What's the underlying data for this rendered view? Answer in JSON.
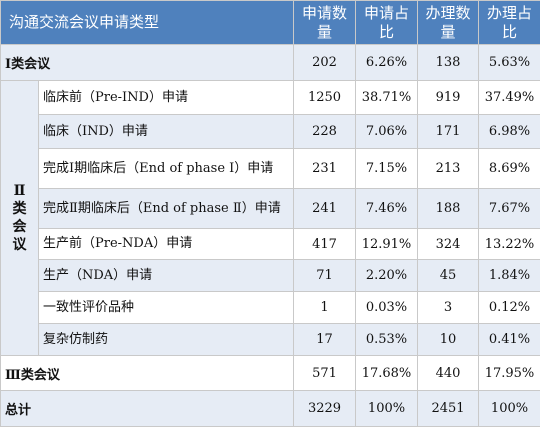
{
  "table": {
    "headers": [
      "沟通交流会议申请类型",
      "申请数量",
      "申请占比",
      "办理数量",
      "办理占比"
    ],
    "group_label": "Ⅱ类会议",
    "rows": [
      {
        "label": "Ⅰ类会议",
        "apply": "202",
        "apply_pct": "6.26%",
        "handle": "138",
        "handle_pct": "5.63%"
      },
      {
        "label": "临床前（Pre-IND）申请",
        "apply": "1250",
        "apply_pct": "38.71%",
        "handle": "919",
        "handle_pct": "37.49%"
      },
      {
        "label": "临床（IND）申请",
        "apply": "228",
        "apply_pct": "7.06%",
        "handle": "171",
        "handle_pct": "6.98%"
      },
      {
        "label": "完成Ⅰ期临床后（End of phase Ⅰ）申请",
        "apply": "231",
        "apply_pct": "7.15%",
        "handle": "213",
        "handle_pct": "8.69%"
      },
      {
        "label": "完成Ⅱ期临床后（End of phase Ⅱ）申请",
        "apply": "241",
        "apply_pct": "7.46%",
        "handle": "188",
        "handle_pct": "7.67%"
      },
      {
        "label": "生产前（Pre-NDA）申请",
        "apply": "417",
        "apply_pct": "12.91%",
        "handle": "324",
        "handle_pct": "13.22%"
      },
      {
        "label": "生产（NDA）申请",
        "apply": "71",
        "apply_pct": "2.20%",
        "handle": "45",
        "handle_pct": "1.84%"
      },
      {
        "label": "一致性评价品种",
        "apply": "1",
        "apply_pct": "0.03%",
        "handle": "3",
        "handle_pct": "0.12%"
      },
      {
        "label": "复杂仿制药",
        "apply": "17",
        "apply_pct": "0.53%",
        "handle": "10",
        "handle_pct": "0.41%"
      },
      {
        "label": "Ⅲ类会议",
        "apply": "571",
        "apply_pct": "17.68%",
        "handle": "440",
        "handle_pct": "17.95%"
      },
      {
        "label": "总计",
        "apply": "3229",
        "apply_pct": "100%",
        "handle": "2451",
        "handle_pct": "100%"
      }
    ]
  },
  "colors": {
    "header_bg": "#4f81bd",
    "row_shade": "#e6ecf5",
    "border": "#c9c9c9"
  }
}
